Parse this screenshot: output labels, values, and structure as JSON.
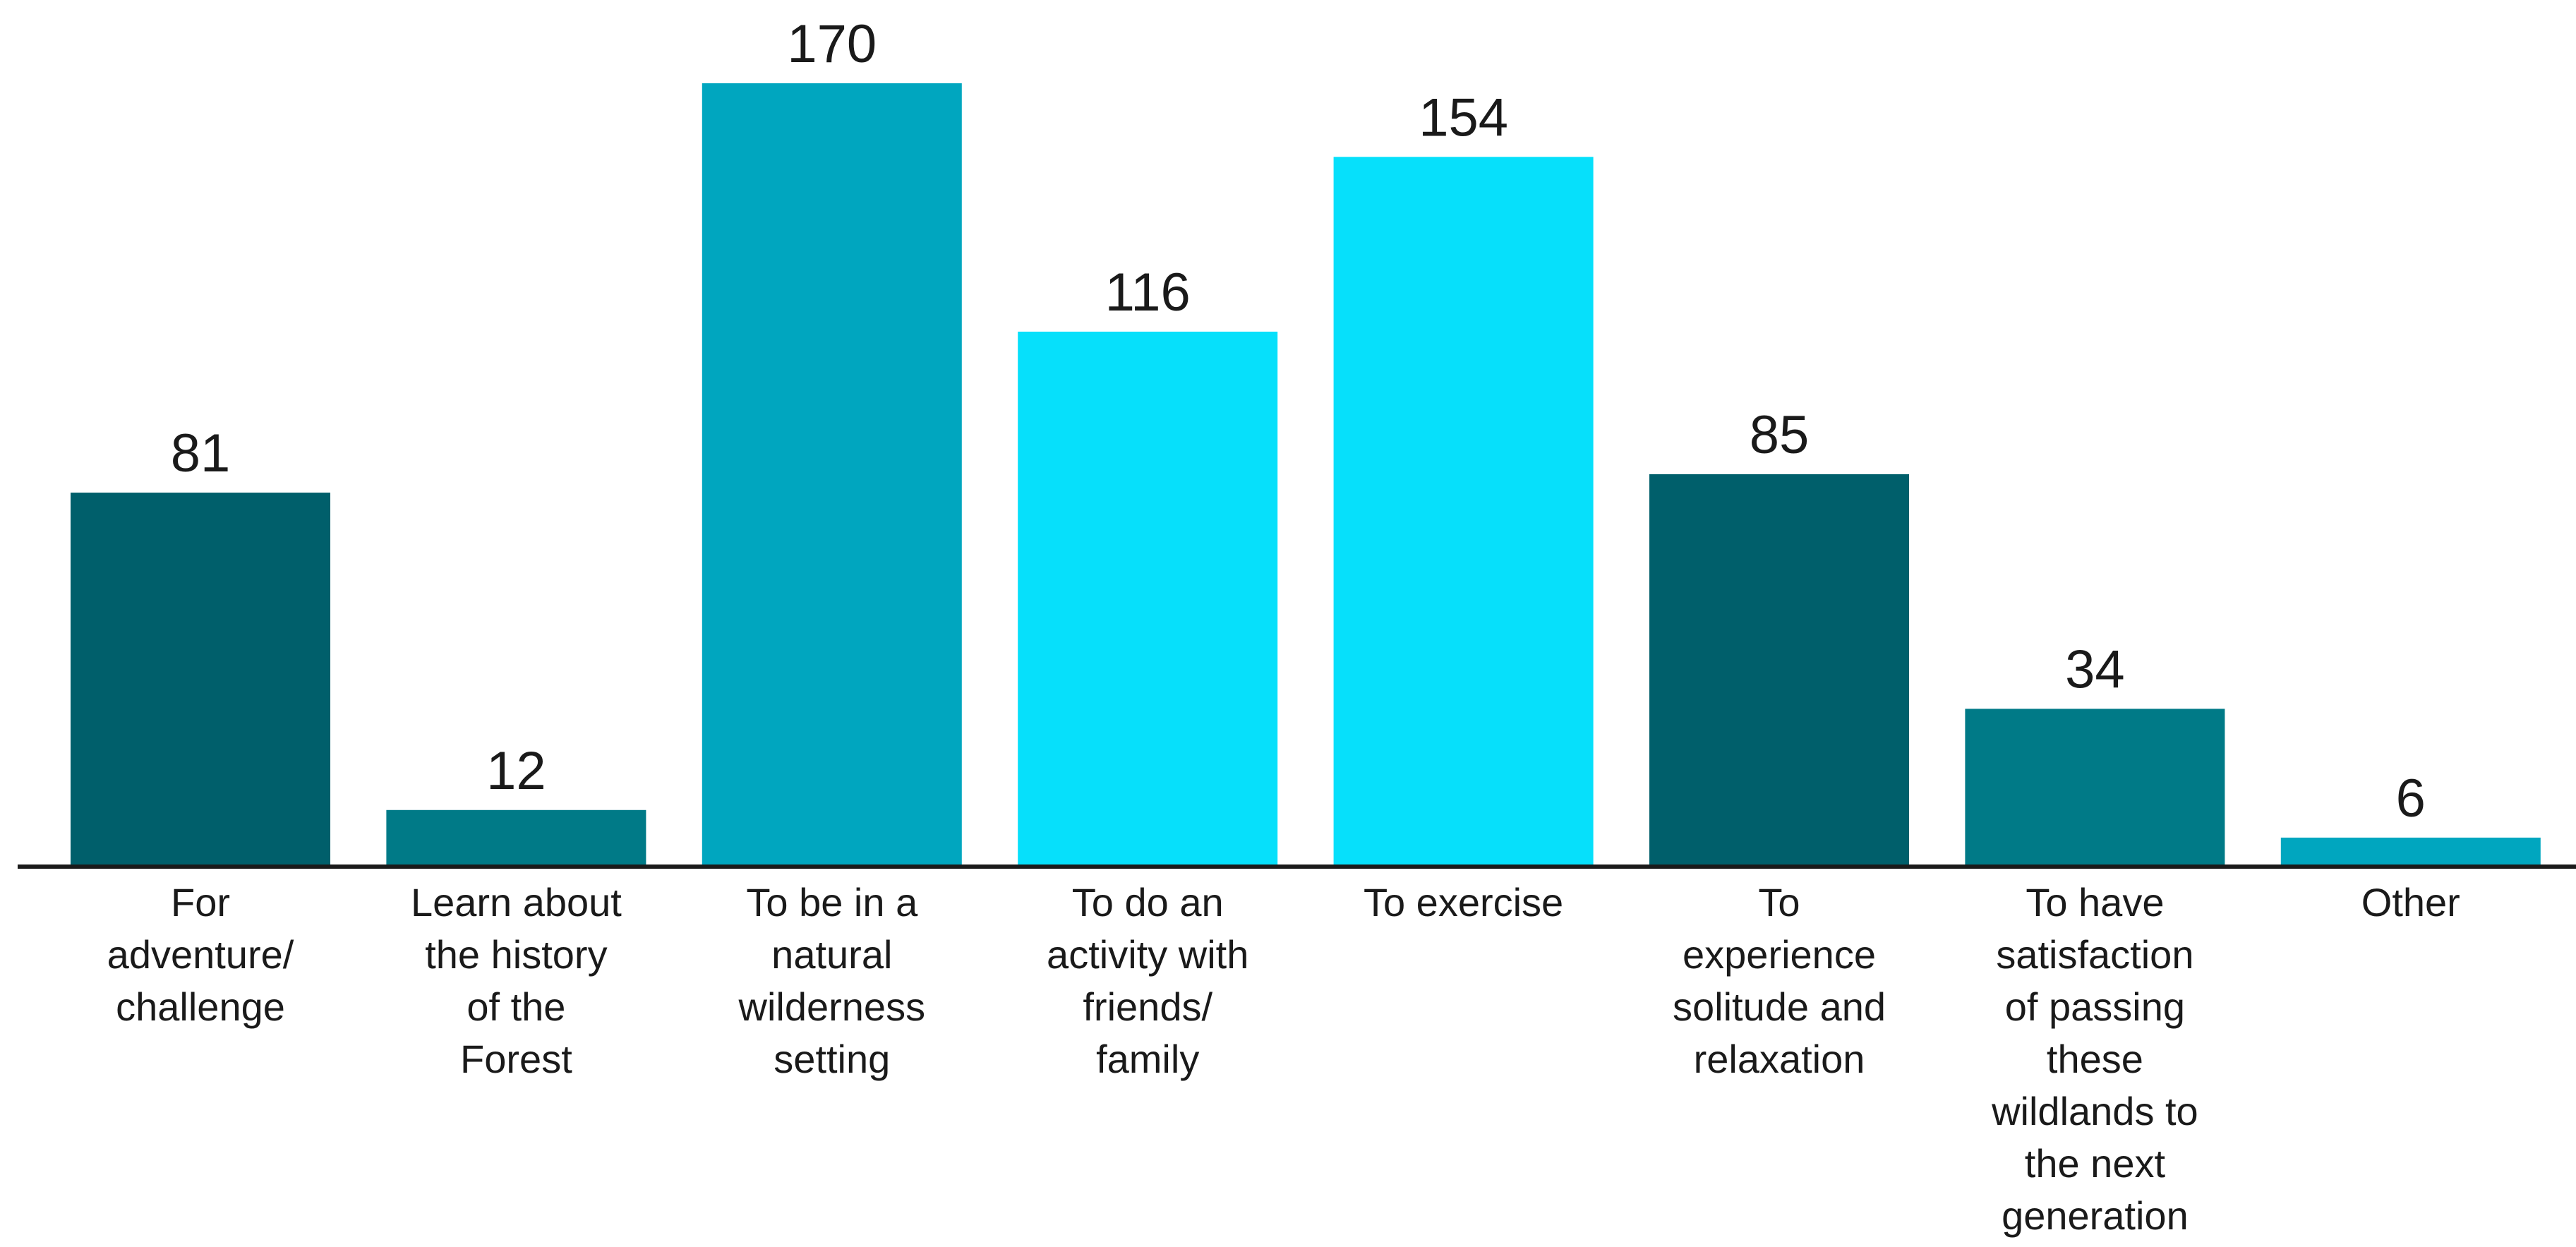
{
  "chart_data": {
    "type": "bar",
    "categories": [
      "For adventure/ challenge",
      "Learn about the history of the Forest",
      "To be in a natural wilderness setting",
      "To do an activity with friends/ family",
      "To exercise",
      "To experience solitude and relaxation",
      "To have satisfaction of passing these wildlands to the next generation",
      "Other"
    ],
    "category_lines": [
      [
        "For",
        "adventure/",
        "challenge"
      ],
      [
        "Learn about",
        "the history",
        "of the",
        "Forest"
      ],
      [
        "To be in a",
        "natural",
        "wilderness",
        "setting"
      ],
      [
        "To do an",
        "activity with",
        "friends/",
        "family"
      ],
      [
        "To exercise"
      ],
      [
        "To",
        "experience",
        "solitude and",
        "relaxation"
      ],
      [
        "To have",
        "satisfaction",
        "of passing",
        "these",
        "wildlands to",
        "the next",
        "generation"
      ],
      [
        "Other"
      ]
    ],
    "values": [
      81,
      12,
      170,
      116,
      154,
      85,
      34,
      6
    ],
    "value_labels": [
      "81",
      "12",
      "170",
      "116",
      "154",
      "85",
      "34",
      "6"
    ],
    "bar_colors": [
      "#005f6b",
      "#007a87",
      "#00a6bf",
      "#06e0fb",
      "#06e0fb",
      "#005f6b",
      "#007a87",
      "#00a6bf"
    ],
    "axis_color": "#1a1a1a",
    "title": "",
    "xlabel": "",
    "ylabel": "",
    "ylim": [
      0,
      170
    ],
    "grid": false,
    "legend": "none"
  }
}
